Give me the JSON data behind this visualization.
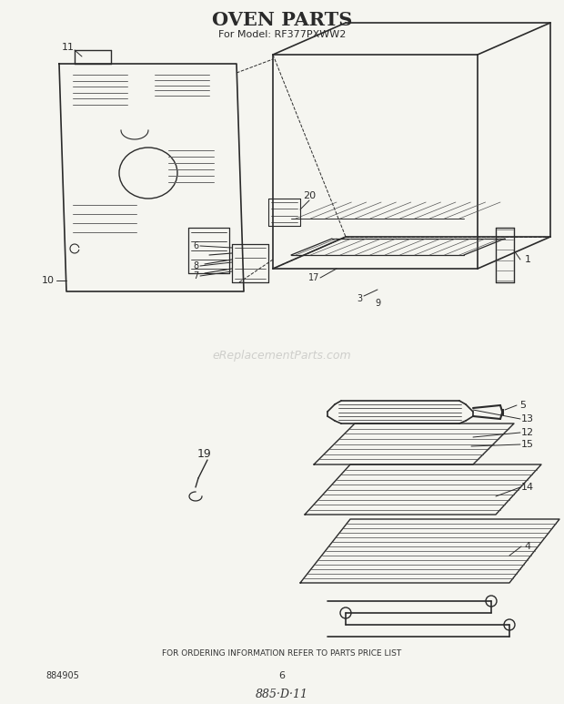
{
  "title": "OVEN PARTS",
  "subtitle": "For Model: RF377PXWW2",
  "bg_color": "#f5f5f0",
  "line_color": "#2a2a2a",
  "title_fontsize": 15,
  "subtitle_fontsize": 8,
  "footer_text": "FOR ORDERING INFORMATION REFER TO PARTS PRICE LIST",
  "bottom_left": "884905",
  "bottom_center": "6",
  "bottom_script": "885·D·11",
  "watermark": "eReplacementParts.com",
  "fig_width": 6.2,
  "fig_height": 7.73,
  "dpi": 100
}
